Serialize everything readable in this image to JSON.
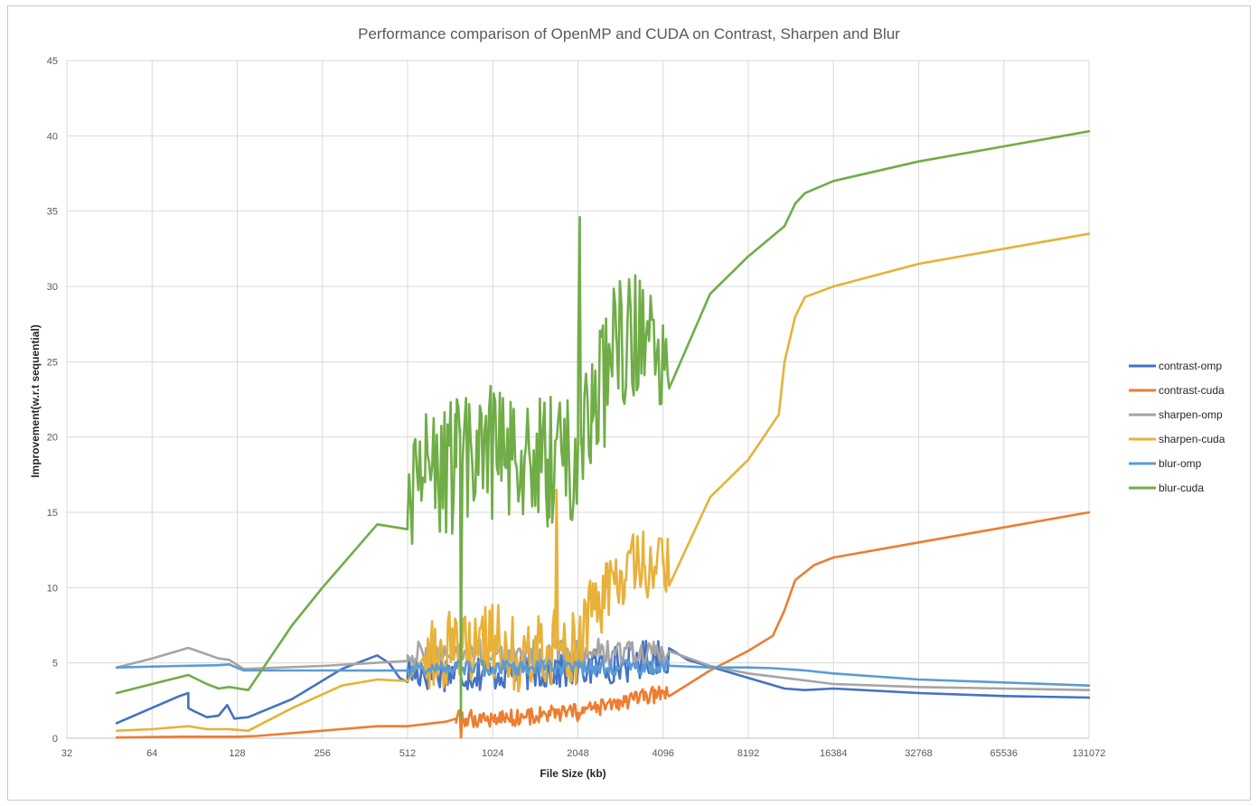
{
  "chart_data": {
    "type": "line",
    "title": "Performance comparison of OpenMP and CUDA on Contrast, Sharpen and Blur",
    "xlabel": "File Size (kb)",
    "ylabel": "Improvement(w.r.t sequential)",
    "x_scale": "log2",
    "xlim": [
      32,
      131072
    ],
    "ylim": [
      0,
      45
    ],
    "x_ticks": [
      32,
      64,
      128,
      256,
      512,
      1024,
      2048,
      4096,
      8192,
      16384,
      32768,
      65536,
      131072
    ],
    "x_tick_labels": [
      "32",
      "64",
      "128",
      "256",
      "512",
      "1024",
      "2048",
      "4096",
      "8192",
      "16384",
      "32768",
      "65536",
      "131072"
    ],
    "y_ticks": [
      0,
      5,
      10,
      15,
      20,
      25,
      30,
      35,
      40,
      45
    ],
    "y_tick_labels": [
      "0",
      "5",
      "10",
      "15",
      "20",
      "25",
      "30",
      "35",
      "40",
      "45"
    ],
    "grid": true,
    "legend_position": "right",
    "series": [
      {
        "name": "contrast-omp",
        "color": "#4472c4",
        "noise": {
          "x_range": [
            512,
            4300
          ],
          "amplitude": 1.3
        },
        "points": [
          [
            48,
            1.0
          ],
          [
            80,
            2.8
          ],
          [
            86,
            3.0
          ],
          [
            86,
            2.0
          ],
          [
            90,
            1.8
          ],
          [
            100,
            1.4
          ],
          [
            110,
            1.5
          ],
          [
            118,
            2.2
          ],
          [
            125,
            1.3
          ],
          [
            140,
            1.4
          ],
          [
            200,
            2.6
          ],
          [
            300,
            4.6
          ],
          [
            400,
            5.5
          ],
          [
            440,
            5.0
          ],
          [
            480,
            4.0
          ],
          [
            512,
            4.4
          ],
          [
            1024,
            4.4
          ],
          [
            2048,
            4.6
          ],
          [
            3000,
            5.0
          ],
          [
            4096,
            5.6
          ],
          [
            5000,
            5.2
          ],
          [
            8192,
            4.0
          ],
          [
            11000,
            3.3
          ],
          [
            13000,
            3.2
          ],
          [
            16384,
            3.3
          ],
          [
            32768,
            3.0
          ],
          [
            65536,
            2.8
          ],
          [
            131072,
            2.7
          ]
        ]
      },
      {
        "name": "contrast-cuda",
        "color": "#ed7d31",
        "noise": {
          "x_range": [
            760,
            4300
          ],
          "amplitude": 0.6
        },
        "points": [
          [
            48,
            0.05
          ],
          [
            80,
            0.1
          ],
          [
            128,
            0.1
          ],
          [
            150,
            0.15
          ],
          [
            256,
            0.5
          ],
          [
            400,
            0.8
          ],
          [
            512,
            0.8
          ],
          [
            700,
            1.1
          ],
          [
            760,
            1.3
          ],
          [
            785,
            1.4
          ],
          [
            790,
            0.05
          ],
          [
            800,
            1.3
          ],
          [
            1024,
            1.3
          ],
          [
            2048,
            1.7
          ],
          [
            3000,
            2.4
          ],
          [
            4096,
            3.0
          ],
          [
            6000,
            4.5
          ],
          [
            8192,
            5.8
          ],
          [
            10000,
            6.8
          ],
          [
            11000,
            8.5
          ],
          [
            12000,
            10.5
          ],
          [
            14000,
            11.5
          ],
          [
            16384,
            12.0
          ],
          [
            32768,
            13.0
          ],
          [
            65536,
            14.0
          ],
          [
            131072,
            15.0
          ]
        ]
      },
      {
        "name": "sharpen-omp",
        "color": "#a5a5a5",
        "noise": {
          "x_range": [
            512,
            4300
          ],
          "amplitude": 1.0
        },
        "points": [
          [
            48,
            4.7
          ],
          [
            64,
            5.3
          ],
          [
            86,
            6.0
          ],
          [
            110,
            5.3
          ],
          [
            120,
            5.2
          ],
          [
            135,
            4.6
          ],
          [
            256,
            4.8
          ],
          [
            512,
            5.5
          ],
          [
            1024,
            5.6
          ],
          [
            2048,
            5.6
          ],
          [
            4096,
            5.6
          ],
          [
            6000,
            4.8
          ],
          [
            8192,
            4.3
          ],
          [
            16384,
            3.6
          ],
          [
            32768,
            3.4
          ],
          [
            65536,
            3.3
          ],
          [
            131072,
            3.2
          ]
        ]
      },
      {
        "name": "sharpen-cuda",
        "color": "#e8b13a",
        "noise": {
          "x_range": [
            590,
            4300
          ],
          "amplitude": 2.6
        },
        "points": [
          [
            48,
            0.5
          ],
          [
            64,
            0.6
          ],
          [
            86,
            0.8
          ],
          [
            100,
            0.6
          ],
          [
            120,
            0.6
          ],
          [
            140,
            0.5
          ],
          [
            200,
            2.0
          ],
          [
            300,
            3.5
          ],
          [
            400,
            3.9
          ],
          [
            512,
            3.8
          ],
          [
            590,
            5.5
          ],
          [
            800,
            6.0
          ],
          [
            1024,
            6.5
          ],
          [
            1300,
            5.5
          ],
          [
            1600,
            6.0
          ],
          [
            1700,
            6.0
          ],
          [
            1720,
            16.5
          ],
          [
            1740,
            5.8
          ],
          [
            2048,
            6.0
          ],
          [
            2300,
            8.5
          ],
          [
            2600,
            10.0
          ],
          [
            3000,
            10.5
          ],
          [
            3500,
            11.5
          ],
          [
            4096,
            11.5
          ],
          [
            6000,
            16.0
          ],
          [
            8192,
            18.5
          ],
          [
            10500,
            21.5
          ],
          [
            11000,
            25.0
          ],
          [
            12000,
            28.0
          ],
          [
            13000,
            29.3
          ],
          [
            16384,
            30.0
          ],
          [
            32768,
            31.5
          ],
          [
            65536,
            32.5
          ],
          [
            131072,
            33.5
          ]
        ]
      },
      {
        "name": "blur-omp",
        "color": "#5b9bd5",
        "noise": {
          "x_range": [
            512,
            4300
          ],
          "amplitude": 0.5
        },
        "points": [
          [
            48,
            4.7
          ],
          [
            80,
            4.8
          ],
          [
            110,
            4.85
          ],
          [
            120,
            4.9
          ],
          [
            135,
            4.5
          ],
          [
            256,
            4.5
          ],
          [
            512,
            4.6
          ],
          [
            1024,
            4.7
          ],
          [
            2048,
            4.7
          ],
          [
            4096,
            4.7
          ],
          [
            6000,
            4.7
          ],
          [
            8192,
            4.7
          ],
          [
            10000,
            4.65
          ],
          [
            13000,
            4.5
          ],
          [
            16384,
            4.3
          ],
          [
            32768,
            3.9
          ],
          [
            65536,
            3.7
          ],
          [
            131072,
            3.5
          ]
        ]
      },
      {
        "name": "blur-cuda",
        "color": "#70ad47",
        "noise": {
          "x_range": [
            512,
            4300
          ],
          "amplitude": 4.5
        },
        "points": [
          [
            48,
            3.0
          ],
          [
            64,
            3.6
          ],
          [
            86,
            4.2
          ],
          [
            100,
            3.6
          ],
          [
            110,
            3.3
          ],
          [
            120,
            3.4
          ],
          [
            140,
            3.2
          ],
          [
            200,
            7.5
          ],
          [
            256,
            10.0
          ],
          [
            400,
            14.2
          ],
          [
            512,
            14.5
          ],
          [
            590,
            17.0
          ],
          [
            760,
            18.0
          ],
          [
            785,
            20.5
          ],
          [
            790,
            1.3
          ],
          [
            800,
            18.0
          ],
          [
            1024,
            19.0
          ],
          [
            1200,
            18.5
          ],
          [
            1600,
            18.5
          ],
          [
            2048,
            19.0
          ],
          [
            2080,
            34.6
          ],
          [
            2100,
            19.5
          ],
          [
            2300,
            21.0
          ],
          [
            2800,
            26.5
          ],
          [
            3500,
            26.5
          ],
          [
            4096,
            26.5
          ],
          [
            6000,
            29.5
          ],
          [
            8192,
            32.0
          ],
          [
            11000,
            34.0
          ],
          [
            12000,
            35.5
          ],
          [
            13000,
            36.2
          ],
          [
            16384,
            37.0
          ],
          [
            32768,
            38.3
          ],
          [
            65536,
            39.3
          ],
          [
            131072,
            40.3
          ]
        ]
      }
    ]
  }
}
